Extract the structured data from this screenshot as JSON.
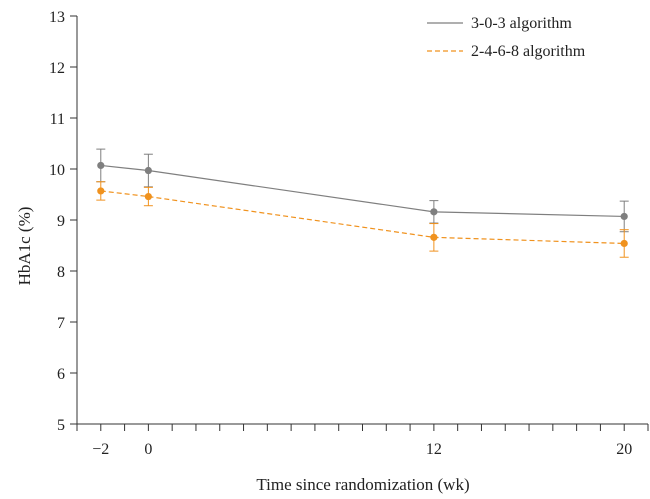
{
  "chart_data": {
    "type": "line",
    "title": "",
    "xlabel": "Time since randomization (wk)",
    "ylabel": "HbA1c (%)",
    "xlim": [
      -3,
      21
    ],
    "ylim": [
      5,
      13
    ],
    "x_ticks": [
      -2,
      0,
      12,
      20
    ],
    "x_tick_labels": [
      "−2",
      "0",
      "12",
      "20"
    ],
    "x_minor_step": 1,
    "y_ticks": [
      5,
      6,
      7,
      8,
      9,
      10,
      11,
      12,
      13
    ],
    "grid": false,
    "legend_position": "top-right",
    "series": [
      {
        "name": "3-0-3 algorithm",
        "color": "#7f7f7f",
        "line_style": "solid",
        "x": [
          -2,
          0,
          12,
          20
        ],
        "y": [
          10.07,
          9.97,
          9.16,
          9.07
        ],
        "error": [
          0.32,
          0.32,
          0.22,
          0.3
        ]
      },
      {
        "name": "2-4-6-8 algorithm",
        "color": "#f0921e",
        "line_style": "dashed",
        "x": [
          -2,
          0,
          12,
          20
        ],
        "y": [
          9.57,
          9.46,
          8.66,
          8.54
        ],
        "error": [
          0.18,
          0.18,
          0.27,
          0.27
        ]
      }
    ]
  }
}
